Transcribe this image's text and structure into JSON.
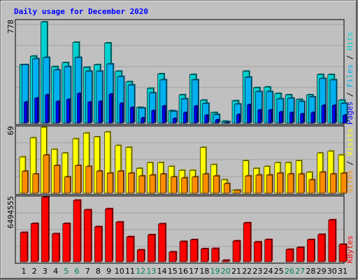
{
  "chart_data": [
    {
      "type": "bar",
      "panel": "top",
      "title": "Daily usage for December 2020",
      "y_max_label": "778",
      "ylim": [
        0,
        778
      ],
      "grid": true,
      "categories": [
        "1",
        "2",
        "3",
        "4",
        "5",
        "6",
        "7",
        "8",
        "9",
        "10",
        "11",
        "12",
        "13",
        "14",
        "15",
        "16",
        "17",
        "18",
        "19",
        "20",
        "21",
        "22",
        "23",
        "24",
        "25",
        "26",
        "27",
        "28",
        "29",
        "30",
        "31"
      ],
      "weekend_days": [
        "5",
        "6",
        "12",
        "13",
        "19",
        "20",
        "26",
        "27"
      ],
      "series": [
        {
          "name": "Hits",
          "color": "#00D0D0",
          "values": [
            445,
            510,
            770,
            430,
            460,
            615,
            425,
            445,
            610,
            395,
            315,
            120,
            265,
            375,
            95,
            215,
            370,
            175,
            80,
            15,
            170,
            395,
            270,
            275,
            225,
            215,
            180,
            215,
            370,
            370,
            175
          ]
        },
        {
          "name": "Files",
          "color": "#00B0F0",
          "values": [
            445,
            490,
            500,
            405,
            430,
            500,
            395,
            395,
            450,
            355,
            290,
            115,
            230,
            330,
            90,
            185,
            330,
            150,
            65,
            10,
            145,
            350,
            240,
            240,
            185,
            190,
            165,
            200,
            340,
            330,
            150
          ]
        },
        {
          "name": "Pages",
          "color": "#0000FF",
          "values": [
            160,
            190,
            215,
            165,
            180,
            225,
            160,
            165,
            220,
            150,
            120,
            40,
            95,
            130,
            35,
            80,
            130,
            60,
            25,
            5,
            65,
            140,
            100,
            100,
            85,
            80,
            70,
            80,
            135,
            135,
            60
          ]
        }
      ],
      "side_legend": [
        {
          "name": "Pages",
          "color": "#0000FF"
        },
        {
          "name": "Files",
          "color": "#00B0F0"
        },
        {
          "name": "Hits",
          "color": "#00D0D0"
        }
      ]
    },
    {
      "type": "bar",
      "panel": "middle",
      "y_max_label": "69",
      "ylim": [
        0,
        69
      ],
      "grid": true,
      "series": [
        {
          "name": "Visits",
          "color": "#FFFF00",
          "values": [
            38,
            58,
            69,
            46,
            42,
            57,
            63,
            59,
            64,
            50,
            48,
            26,
            32,
            32,
            28,
            24,
            24,
            48,
            30,
            14,
            3,
            34,
            26,
            28,
            32,
            32,
            34,
            22,
            42,
            44,
            40
          ]
        },
        {
          "name": "Sites",
          "color": "#FF8C00",
          "values": [
            23,
            20,
            40,
            29,
            17,
            29,
            28,
            23,
            21,
            23,
            21,
            18,
            19,
            20,
            17,
            16,
            17,
            20,
            18,
            10,
            3,
            18,
            19,
            19,
            21,
            20,
            20,
            14,
            22,
            20,
            21
          ]
        }
      ],
      "side_legend": [
        {
          "name": "Sites",
          "color": "#FF8C00"
        },
        {
          "name": "Visits",
          "color": "#FFFF00"
        }
      ]
    },
    {
      "type": "bar",
      "panel": "bottom",
      "y_max_label": "6494555",
      "ylim": [
        0,
        6494555
      ],
      "grid": true,
      "series": [
        {
          "name": "KBytes",
          "color": "#FF0000",
          "values": [
            2950000,
            3850000,
            6494555,
            2820000,
            3850000,
            6200000,
            5230000,
            3530000,
            5340000,
            4000000,
            2520000,
            1190000,
            2720000,
            3820000,
            990000,
            2040000,
            2220000,
            1300000,
            1330000,
            140000,
            2100000,
            3920000,
            1990000,
            2230000,
            0,
            1240000,
            1440000,
            2230000,
            2750000,
            4220000,
            1750000
          ]
        }
      ],
      "side_legend": [
        {
          "name": "KBytes",
          "color": "#FF0000"
        }
      ]
    }
  ]
}
